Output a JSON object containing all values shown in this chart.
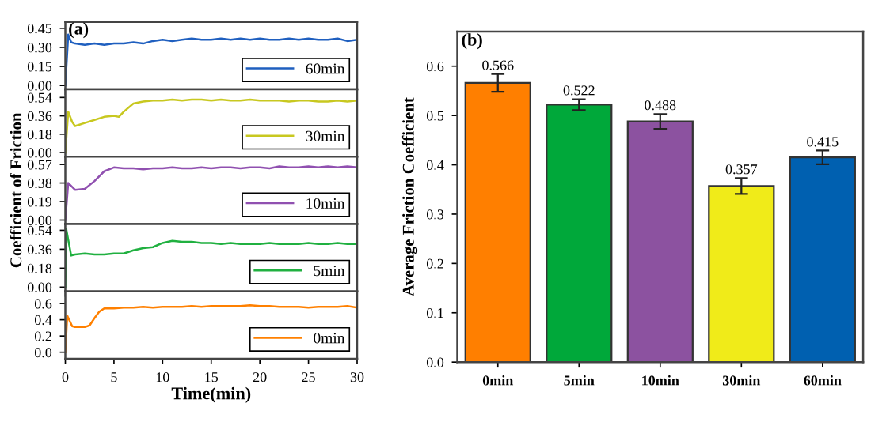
{
  "chart_data": [
    {
      "type": "line",
      "annotations": [
        "(a)"
      ],
      "legend": "bottom right",
      "tick_labels": "y",
      "xlim": [
        0,
        30
      ],
      "xticks": [
        0,
        5,
        10,
        15,
        20,
        25,
        30
      ],
      "ylim": [
        -0.03,
        0.5
      ],
      "yticks": [
        {
          "value": 0,
          "label": "0.00"
        },
        {
          "value": 0.15,
          "label": "0.15"
        },
        {
          "value": 0.3,
          "label": "0.30"
        },
        {
          "value": 0.45,
          "label": "0.45"
        }
      ],
      "x": [
        0,
        0.3,
        0.6,
        1,
        2,
        3,
        4,
        5,
        6,
        7,
        8,
        9,
        10,
        11,
        12,
        13,
        14,
        15,
        16,
        17,
        18,
        19,
        20,
        21,
        22,
        23,
        24,
        25,
        26,
        27,
        28,
        29,
        30
      ],
      "series": [
        {
          "name": "60min",
          "color": "#1f5fbf",
          "values": [
            0.0,
            0.4,
            0.34,
            0.33,
            0.32,
            0.33,
            0.32,
            0.33,
            0.33,
            0.34,
            0.33,
            0.35,
            0.36,
            0.35,
            0.36,
            0.37,
            0.36,
            0.36,
            0.37,
            0.36,
            0.37,
            0.36,
            0.37,
            0.36,
            0.36,
            0.37,
            0.36,
            0.37,
            0.36,
            0.36,
            0.37,
            0.35,
            0.36
          ]
        }
      ]
    },
    {
      "type": "line",
      "legend": "bottom right",
      "tick_labels": "y",
      "xlim": [
        0,
        30
      ],
      "xticks": [
        0,
        5,
        10,
        15,
        20,
        25,
        30
      ],
      "ylim": [
        -0.04,
        0.62
      ],
      "yticks": [
        {
          "value": 0,
          "label": "0.00"
        },
        {
          "value": 0.18,
          "label": "0.18"
        },
        {
          "value": 0.36,
          "label": "0.36"
        },
        {
          "value": 0.54,
          "label": "0.54"
        }
      ],
      "x": [
        0,
        0.3,
        0.7,
        1,
        2,
        3,
        4,
        5,
        5.5,
        6,
        7,
        8,
        9,
        10,
        11,
        12,
        13,
        14,
        15,
        16,
        17,
        18,
        19,
        20,
        21,
        22,
        23,
        24,
        25,
        26,
        27,
        28,
        29,
        30
      ],
      "series": [
        {
          "name": "30min",
          "color": "#c8c820",
          "values": [
            0.0,
            0.4,
            0.3,
            0.26,
            0.29,
            0.32,
            0.35,
            0.36,
            0.35,
            0.4,
            0.48,
            0.5,
            0.51,
            0.51,
            0.52,
            0.51,
            0.52,
            0.52,
            0.51,
            0.52,
            0.51,
            0.51,
            0.52,
            0.51,
            0.51,
            0.51,
            0.5,
            0.51,
            0.51,
            0.5,
            0.5,
            0.51,
            0.5,
            0.51
          ]
        }
      ]
    },
    {
      "type": "line",
      "ylabel": "Coefficient of Friction",
      "legend": "bottom right",
      "tick_labels": "y",
      "xlim": [
        0,
        30
      ],
      "xticks": [
        0,
        5,
        10,
        15,
        20,
        25,
        30
      ],
      "ylim": [
        -0.04,
        0.65
      ],
      "yticks": [
        {
          "value": 0,
          "label": "0.00"
        },
        {
          "value": 0.19,
          "label": "0.19"
        },
        {
          "value": 0.38,
          "label": "0.38"
        },
        {
          "value": 0.57,
          "label": "0.57"
        }
      ],
      "x": [
        0,
        0.3,
        1,
        2,
        3,
        4,
        5,
        6,
        7,
        8,
        9,
        10,
        11,
        12,
        13,
        14,
        15,
        16,
        17,
        18,
        19,
        20,
        21,
        22,
        23,
        24,
        25,
        26,
        27,
        28,
        29,
        30
      ],
      "series": [
        {
          "name": "10min",
          "color": "#9050b0",
          "values": [
            0.0,
            0.38,
            0.31,
            0.32,
            0.4,
            0.5,
            0.54,
            0.53,
            0.53,
            0.52,
            0.53,
            0.53,
            0.54,
            0.53,
            0.53,
            0.54,
            0.53,
            0.54,
            0.54,
            0.53,
            0.54,
            0.54,
            0.53,
            0.55,
            0.54,
            0.54,
            0.55,
            0.54,
            0.55,
            0.54,
            0.55,
            0.54
          ]
        }
      ]
    },
    {
      "type": "line",
      "legend": "bottom right",
      "tick_labels": "y",
      "xlim": [
        0,
        30
      ],
      "xticks": [
        0,
        5,
        10,
        15,
        20,
        25,
        30
      ],
      "ylim": [
        -0.04,
        0.6
      ],
      "yticks": [
        {
          "value": 0,
          "label": "0.00"
        },
        {
          "value": 0.18,
          "label": "0.18"
        },
        {
          "value": 0.36,
          "label": "0.36"
        },
        {
          "value": 0.54,
          "label": "0.54"
        }
      ],
      "x": [
        0,
        0.1,
        0.6,
        1,
        2,
        3,
        4,
        5,
        6,
        7,
        8,
        9,
        10,
        11,
        12,
        13,
        14,
        15,
        16,
        17,
        18,
        19,
        20,
        21,
        22,
        23,
        24,
        25,
        26,
        27,
        28,
        29,
        30
      ],
      "series": [
        {
          "name": "5min",
          "color": "#20b040",
          "values": [
            0.0,
            0.55,
            0.3,
            0.31,
            0.32,
            0.31,
            0.31,
            0.32,
            0.32,
            0.35,
            0.37,
            0.38,
            0.42,
            0.44,
            0.43,
            0.43,
            0.42,
            0.42,
            0.41,
            0.42,
            0.41,
            0.41,
            0.41,
            0.42,
            0.41,
            0.41,
            0.41,
            0.42,
            0.41,
            0.41,
            0.42,
            0.41,
            0.41
          ]
        }
      ]
    },
    {
      "type": "line",
      "xlabel": "Time(min)",
      "legend": "bottom right",
      "xlim": [
        0,
        30
      ],
      "xticks": [
        0,
        5,
        10,
        15,
        20,
        25,
        30
      ],
      "ylim": [
        -0.08,
        0.75
      ],
      "yticks": [
        {
          "value": 0,
          "label": "0.0"
        },
        {
          "value": 0.2,
          "label": "0.2"
        },
        {
          "value": 0.4,
          "label": "0.4"
        },
        {
          "value": 0.6,
          "label": "0.6"
        }
      ],
      "x": [
        0,
        0.2,
        0.7,
        1,
        2,
        2.5,
        3,
        3.5,
        4,
        5,
        6,
        7,
        8,
        9,
        10,
        11,
        12,
        13,
        14,
        15,
        16,
        17,
        18,
        19,
        20,
        21,
        22,
        23,
        24,
        25,
        26,
        27,
        28,
        29,
        30
      ],
      "series": [
        {
          "name": "0min",
          "color": "#ff8000",
          "values": [
            0.0,
            0.45,
            0.32,
            0.31,
            0.31,
            0.33,
            0.42,
            0.5,
            0.54,
            0.54,
            0.55,
            0.55,
            0.56,
            0.55,
            0.56,
            0.56,
            0.56,
            0.57,
            0.56,
            0.57,
            0.57,
            0.57,
            0.57,
            0.58,
            0.57,
            0.57,
            0.56,
            0.56,
            0.56,
            0.55,
            0.56,
            0.56,
            0.56,
            0.57,
            0.55
          ]
        }
      ]
    },
    {
      "type": "bar",
      "annotations": [
        "(b)"
      ],
      "ylabel": "Average Friction Coefficient",
      "data_labels": true,
      "ylim": [
        0,
        0.67
      ],
      "yticks": [
        {
          "value": 0,
          "label": "0.0"
        },
        0.1,
        0.2,
        0.3,
        0.4,
        0.5,
        0.6
      ],
      "categories": [
        "0min",
        "5min",
        "10min",
        "30min",
        "60min"
      ],
      "values": [
        0.566,
        0.522,
        0.488,
        0.357,
        0.415
      ],
      "errors": [
        0.018,
        0.011,
        0.015,
        0.016,
        0.014
      ],
      "colors": [
        "#ff7f00",
        "#00a83a",
        "#8c52a0",
        "#f0eb19",
        "#0060b0"
      ]
    }
  ]
}
